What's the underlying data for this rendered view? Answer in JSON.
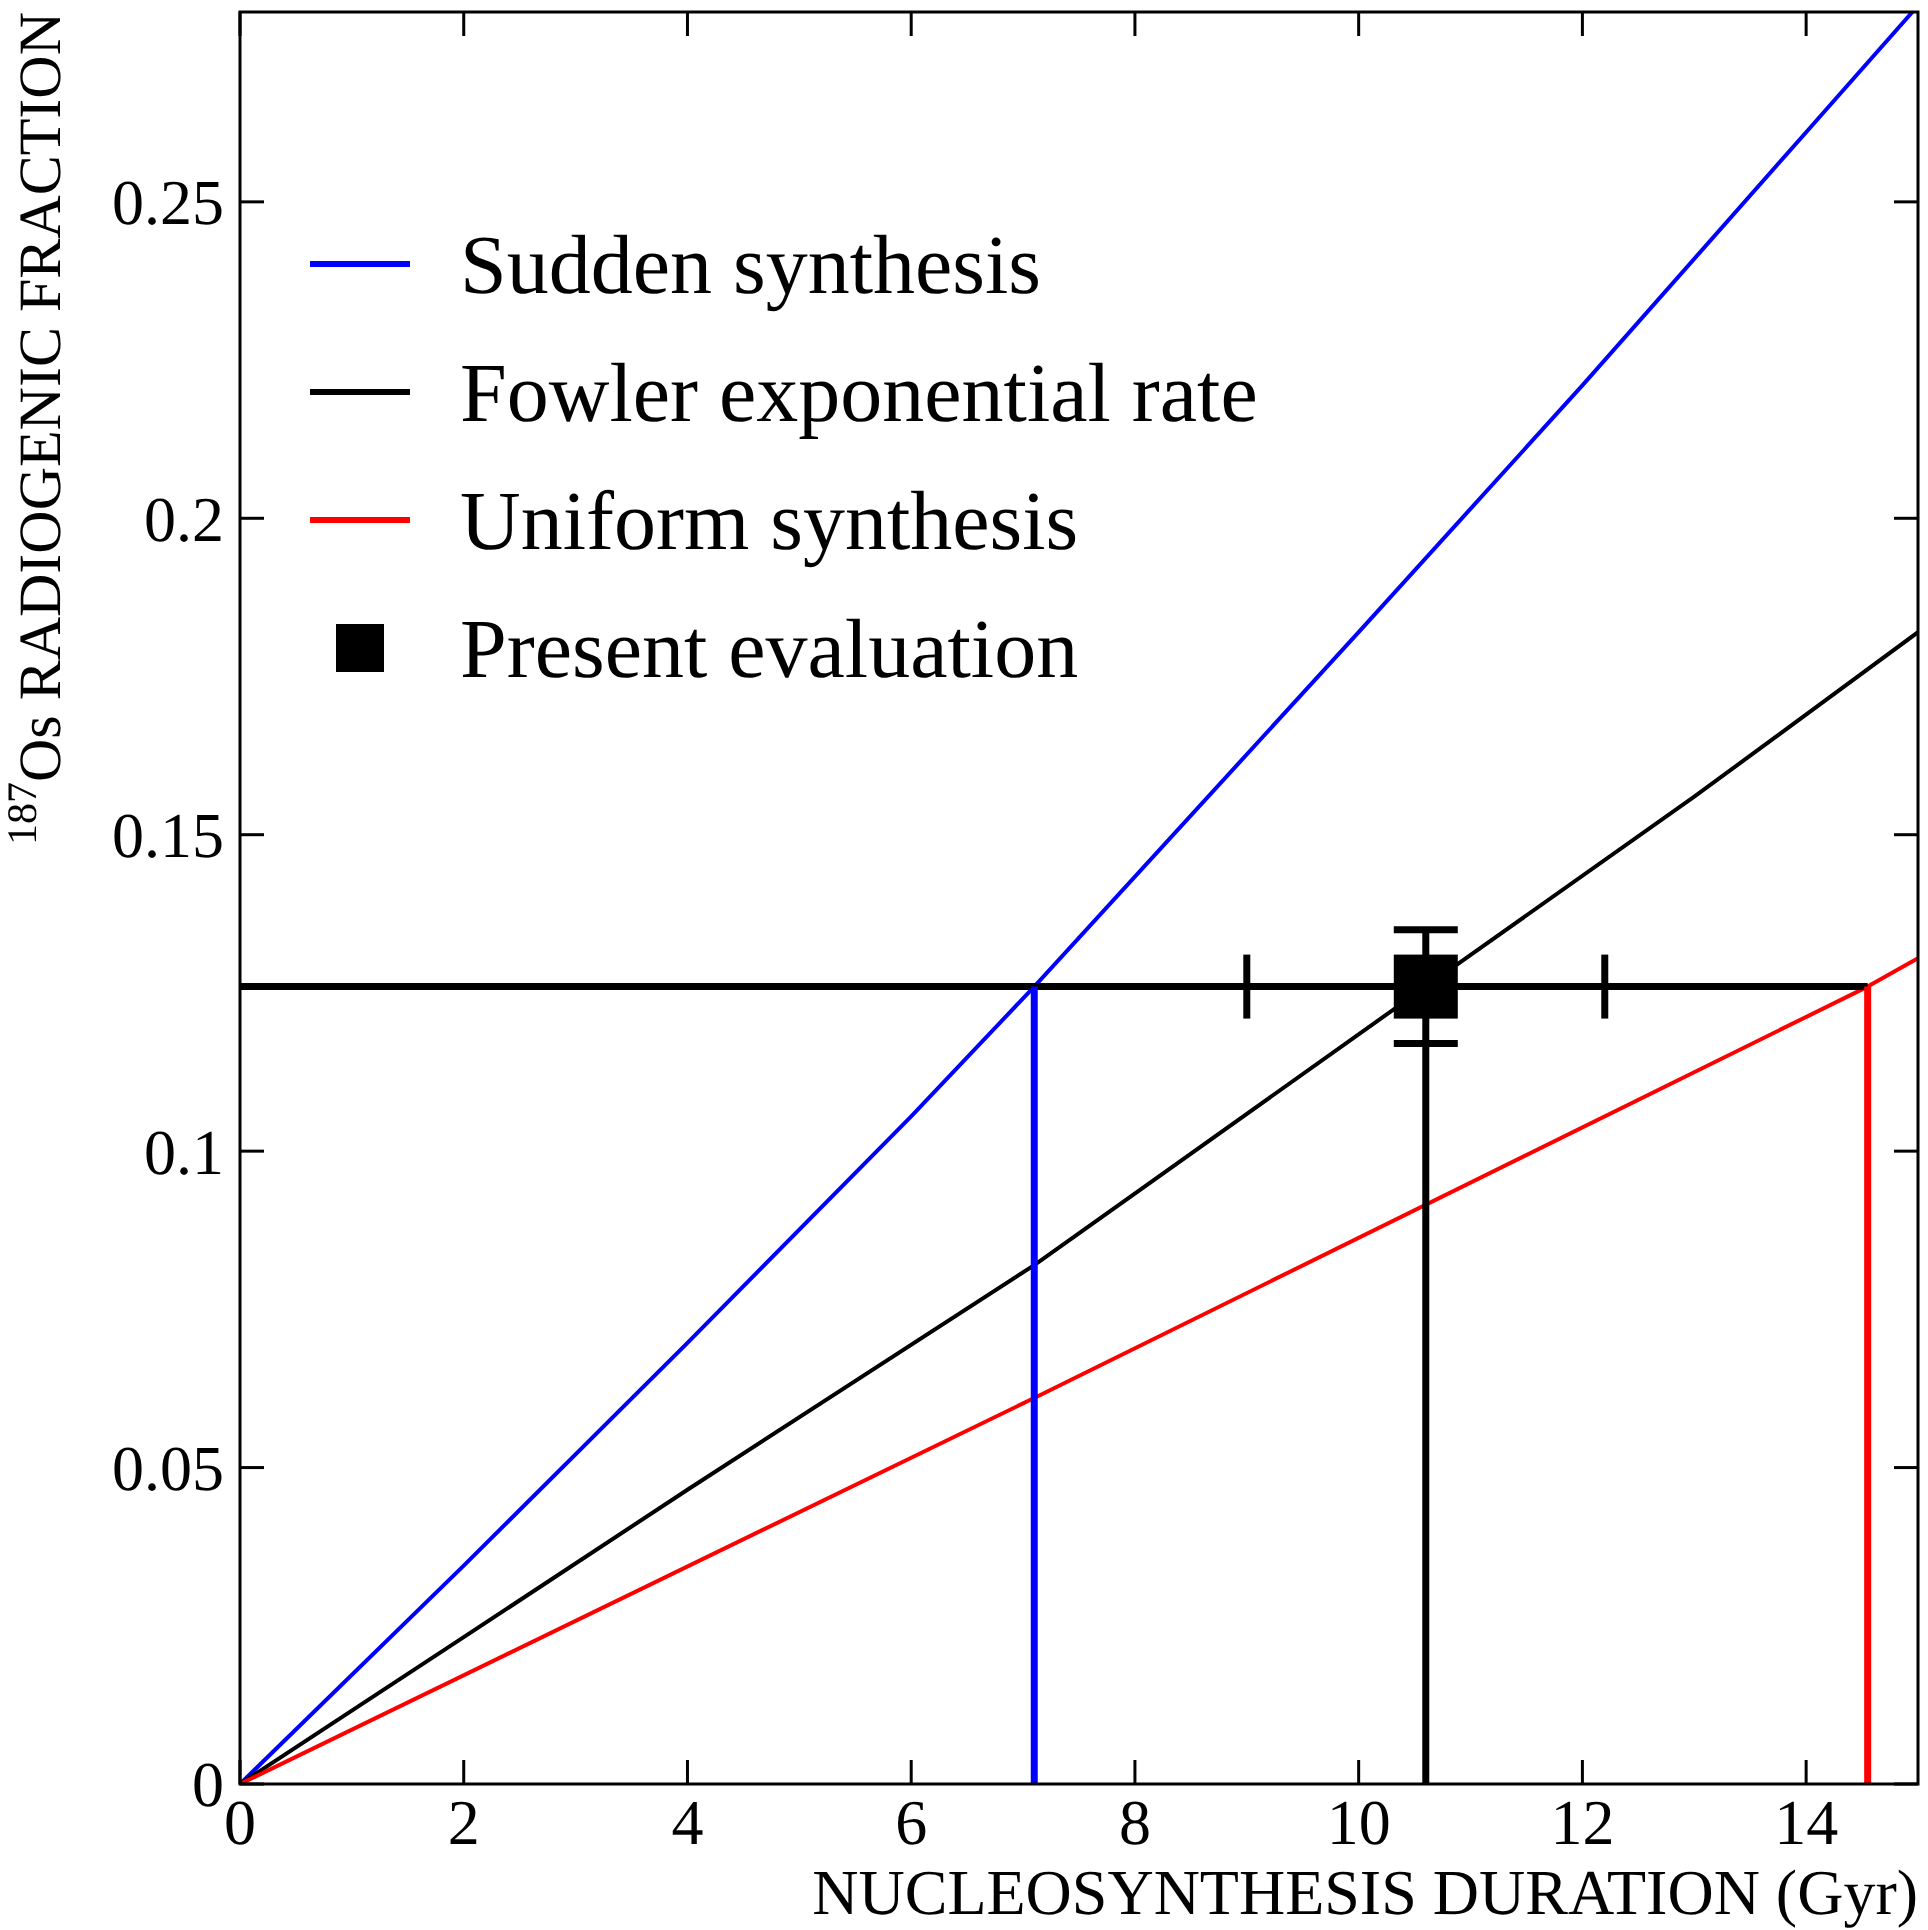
{
  "chart_data": {
    "type": "line",
    "xlabel": "NUCLEOSYNTHESIS DURATION (Gyr)",
    "ylabel": "$^{187}$Os RADIOGENIC FRACTION",
    "xlim": [
      0,
      15
    ],
    "ylim": [
      0,
      0.28
    ],
    "xticks": [
      0,
      2,
      4,
      6,
      8,
      10,
      12,
      14
    ],
    "yticks": [
      0,
      0.05,
      0.1,
      0.15,
      0.2,
      0.25
    ],
    "legend": "top left",
    "grid": false,
    "line_style": "solid",
    "series": [
      {
        "name": "Sudden synthesis",
        "color": "#0000ff",
        "x": [
          0,
          2,
          4,
          6,
          7.1,
          10,
          12,
          14,
          14.95
        ],
        "values": [
          0,
          0.0345,
          0.0697,
          0.1055,
          0.126,
          0.182,
          0.221,
          0.261,
          0.28
        ]
      },
      {
        "name": "Fowler exponential rate",
        "color": "#000000",
        "x": [
          0,
          2,
          4,
          7.1,
          10.6,
          13,
          15
        ],
        "values": [
          0,
          0.0232,
          0.0465,
          0.082,
          0.126,
          0.156,
          0.182
        ]
      },
      {
        "name": "Uniform synthesis",
        "color": "#ff0000",
        "x": [
          0,
          7.1,
          14.55,
          15
        ],
        "values": [
          0,
          0.061,
          0.126,
          0.1305
        ]
      },
      {
        "name": "Present evaluation",
        "type": "scatter",
        "marker": "square",
        "color": "#000000",
        "x": [
          10.6
        ],
        "values": [
          0.126
        ],
        "errors": [
          0.009
        ],
        "xerrors": [
          1.6
        ]
      },
      {
        "type": "line",
        "color": "#000000",
        "x": [
          0,
          14.55
        ],
        "values": [
          0.126,
          0.126
        ]
      },
      {
        "type": "line",
        "color": "#0000ff",
        "x": [
          7.1,
          7.1
        ],
        "values": [
          0,
          0.126
        ]
      },
      {
        "type": "line",
        "color": "#000000",
        "x": [
          10.6,
          10.6
        ],
        "values": [
          0,
          0.117
        ]
      },
      {
        "type": "line",
        "color": "#ff0000",
        "x": [
          14.55,
          14.55
        ],
        "values": [
          0,
          0.126
        ]
      }
    ]
  }
}
